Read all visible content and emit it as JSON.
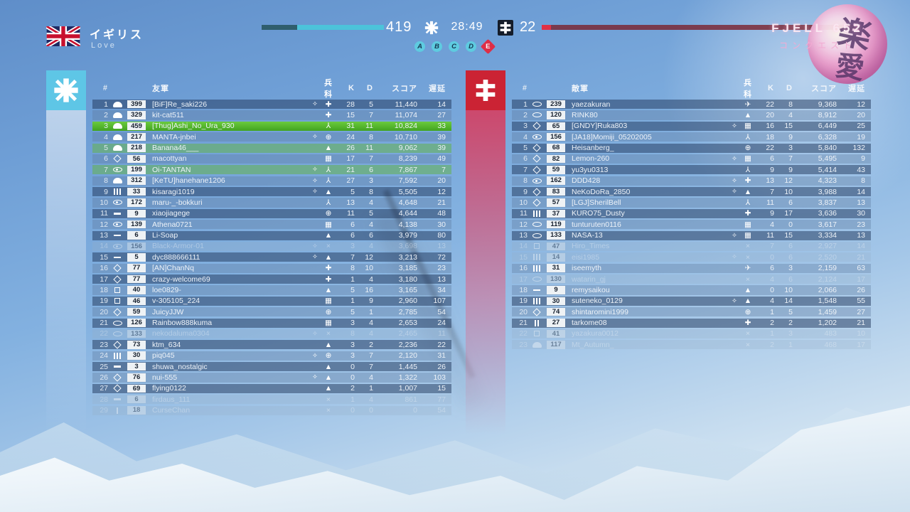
{
  "header": {
    "team_name": "イギリス",
    "server_name": "Love",
    "friendly_tickets": "419",
    "timer": "28:49",
    "enemy_tickets": "22",
    "map_name": "FJELL 652",
    "mode_name": "コンクエスト",
    "watermark_kanji_1": "楽",
    "watermark_kanji_2": "愛",
    "objectives": [
      {
        "label": "A",
        "shape": "circle"
      },
      {
        "label": "B",
        "shape": "circle"
      },
      {
        "label": "C",
        "shape": "circle"
      },
      {
        "label": "D",
        "shape": "circle"
      },
      {
        "label": "E",
        "shape": "diamond"
      }
    ],
    "colors": {
      "friendly_accent": "#5ec6e6",
      "enemy_accent": "#cb2334",
      "self_row": "#55b52e",
      "squad_row": "#66b256"
    }
  },
  "friendly": {
    "columns": {
      "num": "#",
      "name": "友軍",
      "cls": "兵科",
      "k": "K",
      "d": "D",
      "score": "スコア",
      "ping": "遅延"
    },
    "rows": [
      {
        "num": "1",
        "rank": "helmet",
        "level": "399",
        "name": "[BiF]Re_saki226",
        "squad": true,
        "cls": "medic",
        "k": "28",
        "d": "5",
        "score": "11,440",
        "ping": "14",
        "state": "normal"
      },
      {
        "num": "2",
        "rank": "helmet",
        "level": "329",
        "name": "kit-cat511",
        "squad": false,
        "cls": "medic",
        "k": "15",
        "d": "7",
        "score": "11,074",
        "ping": "27",
        "state": "normal"
      },
      {
        "num": "3",
        "rank": "helmet",
        "level": "459",
        "name": "[Thug]Ashi_No_Ura_930",
        "squad": false,
        "cls": "pilot",
        "k": "31",
        "d": "11",
        "score": "10,824",
        "ping": "33",
        "state": "self"
      },
      {
        "num": "4",
        "rank": "helmet",
        "level": "217",
        "name": "MANTA-jnbei",
        "squad": true,
        "cls": "tanker",
        "k": "24",
        "d": "8",
        "score": "10,710",
        "ping": "39",
        "state": "normal"
      },
      {
        "num": "5",
        "rank": "helmet",
        "level": "218",
        "name": "Banana46___",
        "squad": false,
        "cls": "scout",
        "k": "26",
        "d": "11",
        "score": "9,062",
        "ping": "39",
        "state": "squad"
      },
      {
        "num": "6",
        "rank": "diamond",
        "level": "56",
        "name": "macottyan",
        "squad": false,
        "cls": "support",
        "k": "17",
        "d": "7",
        "score": "8,239",
        "ping": "49",
        "state": "normal"
      },
      {
        "num": "7",
        "rank": "eye",
        "level": "199",
        "name": "Oi-TANTAN",
        "squad": true,
        "cls": "pilot",
        "k": "21",
        "d": "6",
        "score": "7,867",
        "ping": "7",
        "state": "squad"
      },
      {
        "num": "8",
        "rank": "helmet",
        "level": "312",
        "name": "[KeTU]hanehane1206",
        "squad": true,
        "cls": "pilot",
        "k": "27",
        "d": "3",
        "score": "7,592",
        "ping": "20",
        "state": "normal"
      },
      {
        "num": "9",
        "rank": "bars3",
        "level": "33",
        "name": "kisaragi1019",
        "squad": true,
        "cls": "scout",
        "k": "5",
        "d": "8",
        "score": "5,505",
        "ping": "12",
        "state": "normal"
      },
      {
        "num": "10",
        "rank": "eye",
        "level": "172",
        "name": "maru-_-bokkuri",
        "squad": false,
        "cls": "pilot",
        "k": "13",
        "d": "4",
        "score": "4,648",
        "ping": "21",
        "state": "normal"
      },
      {
        "num": "11",
        "rank": "dash",
        "level": "9",
        "name": "xiaojiagege",
        "squad": false,
        "cls": "tanker",
        "k": "11",
        "d": "5",
        "score": "4,644",
        "ping": "48",
        "state": "normal"
      },
      {
        "num": "12",
        "rank": "eye",
        "level": "139",
        "name": "Athena0721",
        "squad": false,
        "cls": "support",
        "k": "6",
        "d": "4",
        "score": "4,138",
        "ping": "30",
        "state": "normal"
      },
      {
        "num": "13",
        "rank": "dash",
        "level": "6",
        "name": "Li-Soap",
        "squad": false,
        "cls": "scout",
        "k": "6",
        "d": "6",
        "score": "3,979",
        "ping": "80",
        "state": "normal"
      },
      {
        "num": "14",
        "rank": "eye",
        "level": "156",
        "name": "Black-Armor-01",
        "squad": true,
        "cls": "none",
        "k": "3",
        "d": "4",
        "score": "3,698",
        "ping": "13",
        "state": "inactive"
      },
      {
        "num": "15",
        "rank": "dash",
        "level": "5",
        "name": "dyc888666111",
        "squad": true,
        "cls": "scout",
        "k": "7",
        "d": "12",
        "score": "3,213",
        "ping": "72",
        "state": "normal"
      },
      {
        "num": "16",
        "rank": "diamond",
        "level": "77",
        "name": "[AN]ChanNq",
        "squad": false,
        "cls": "medic",
        "k": "8",
        "d": "10",
        "score": "3,185",
        "ping": "23",
        "state": "normal"
      },
      {
        "num": "17",
        "rank": "diamond",
        "level": "77",
        "name": "crazy-welcome69",
        "squad": false,
        "cls": "medic",
        "k": "1",
        "d": "4",
        "score": "3,180",
        "ping": "13",
        "state": "normal"
      },
      {
        "num": "18",
        "rank": "square",
        "level": "40",
        "name": "loe0829-",
        "squad": false,
        "cls": "scout",
        "k": "5",
        "d": "16",
        "score": "3,165",
        "ping": "34",
        "state": "normal"
      },
      {
        "num": "19",
        "rank": "square",
        "level": "46",
        "name": "v-305105_224",
        "squad": false,
        "cls": "support",
        "k": "1",
        "d": "9",
        "score": "2,960",
        "ping": "107",
        "state": "normal"
      },
      {
        "num": "20",
        "rank": "diamond",
        "level": "59",
        "name": "JuicyJJW",
        "squad": false,
        "cls": "tanker",
        "k": "5",
        "d": "1",
        "score": "2,785",
        "ping": "54",
        "state": "normal"
      },
      {
        "num": "21",
        "rank": "oval",
        "level": "126",
        "name": "Rainbow888kuma",
        "squad": false,
        "cls": "support",
        "k": "3",
        "d": "4",
        "score": "2,653",
        "ping": "24",
        "state": "normal"
      },
      {
        "num": "22",
        "rank": "oval",
        "level": "133",
        "name": "nekodaluma0304",
        "squad": true,
        "cls": "none",
        "k": "8",
        "d": "4",
        "score": "2,465",
        "ping": "11",
        "state": "inactive"
      },
      {
        "num": "23",
        "rank": "diamond",
        "level": "73",
        "name": "ktm_634",
        "squad": false,
        "cls": "scout",
        "k": "3",
        "d": "2",
        "score": "2,236",
        "ping": "22",
        "state": "normal"
      },
      {
        "num": "24",
        "rank": "bars3",
        "level": "30",
        "name": "piq045",
        "squad": true,
        "cls": "tanker",
        "k": "3",
        "d": "7",
        "score": "2,120",
        "ping": "31",
        "state": "normal"
      },
      {
        "num": "25",
        "rank": "dash",
        "level": "3",
        "name": "shuwa_nostalgic",
        "squad": false,
        "cls": "scout",
        "k": "0",
        "d": "7",
        "score": "1,445",
        "ping": "26",
        "state": "normal"
      },
      {
        "num": "26",
        "rank": "diamond",
        "level": "76",
        "name": "nui-555",
        "squad": true,
        "cls": "scout",
        "k": "0",
        "d": "4",
        "score": "1,322",
        "ping": "103",
        "state": "normal"
      },
      {
        "num": "27",
        "rank": "diamond",
        "level": "69",
        "name": "flying0122",
        "squad": false,
        "cls": "scout",
        "k": "2",
        "d": "1",
        "score": "1,007",
        "ping": "15",
        "state": "normal"
      },
      {
        "num": "28",
        "rank": "dash",
        "level": "6",
        "name": "firdaus_111",
        "squad": false,
        "cls": "none",
        "k": "1",
        "d": "4",
        "score": "861",
        "ping": "77",
        "state": "inactive"
      },
      {
        "num": "29",
        "rank": "bar1",
        "level": "18",
        "name": "CurseChan",
        "squad": false,
        "cls": "none",
        "k": "0",
        "d": "0",
        "score": "0",
        "ping": "54",
        "state": "inactive"
      }
    ]
  },
  "enemy": {
    "columns": {
      "num": "#",
      "name": "敵軍",
      "cls": "兵科",
      "k": "K",
      "d": "D",
      "score": "スコア",
      "ping": "遅延"
    },
    "rows": [
      {
        "num": "1",
        "rank": "oval",
        "level": "239",
        "name": "yaezakuran",
        "squad": false,
        "cls": "plane",
        "k": "22",
        "d": "8",
        "score": "9,368",
        "ping": "12",
        "state": "normal"
      },
      {
        "num": "2",
        "rank": "oval",
        "level": "120",
        "name": "RINK80",
        "squad": false,
        "cls": "scout",
        "k": "20",
        "d": "4",
        "score": "8,912",
        "ping": "20",
        "state": "normal"
      },
      {
        "num": "3",
        "rank": "diamond",
        "level": "65",
        "name": "[GNDY]Ruka803",
        "squad": true,
        "cls": "support",
        "k": "16",
        "d": "15",
        "score": "6,449",
        "ping": "25",
        "state": "normal"
      },
      {
        "num": "4",
        "rank": "eye",
        "level": "156",
        "name": "[JA18]Momiji_05202005",
        "squad": false,
        "cls": "pilot",
        "k": "18",
        "d": "9",
        "score": "6,328",
        "ping": "19",
        "state": "normal"
      },
      {
        "num": "5",
        "rank": "diamond",
        "level": "68",
        "name": "Heisanberg_",
        "squad": false,
        "cls": "tanker",
        "k": "22",
        "d": "3",
        "score": "5,840",
        "ping": "132",
        "state": "normal"
      },
      {
        "num": "6",
        "rank": "diamond",
        "level": "82",
        "name": "Lemon-260",
        "squad": true,
        "cls": "support",
        "k": "6",
        "d": "7",
        "score": "5,495",
        "ping": "9",
        "state": "normal"
      },
      {
        "num": "7",
        "rank": "diamond",
        "level": "59",
        "name": "yu3yu0313",
        "squad": false,
        "cls": "pilot",
        "k": "9",
        "d": "9",
        "score": "5,414",
        "ping": "43",
        "state": "normal"
      },
      {
        "num": "8",
        "rank": "eye",
        "level": "162",
        "name": "DDD428",
        "squad": true,
        "cls": "medic",
        "k": "13",
        "d": "12",
        "score": "4,323",
        "ping": "8",
        "state": "normal"
      },
      {
        "num": "9",
        "rank": "diamond",
        "level": "83",
        "name": "NeKoDoRa_2850",
        "squad": true,
        "cls": "scout",
        "k": "7",
        "d": "10",
        "score": "3,988",
        "ping": "14",
        "state": "normal"
      },
      {
        "num": "10",
        "rank": "diamond",
        "level": "57",
        "name": "[LGJ]SherilBell",
        "squad": false,
        "cls": "pilot",
        "k": "11",
        "d": "6",
        "score": "3,837",
        "ping": "13",
        "state": "normal"
      },
      {
        "num": "11",
        "rank": "bars3",
        "level": "37",
        "name": "KURO75_Dusty",
        "squad": false,
        "cls": "medic",
        "k": "9",
        "d": "17",
        "score": "3,636",
        "ping": "30",
        "state": "normal"
      },
      {
        "num": "12",
        "rank": "oval",
        "level": "119",
        "name": "tunturuten0116",
        "squad": false,
        "cls": "support",
        "k": "4",
        "d": "0",
        "score": "3,617",
        "ping": "23",
        "state": "normal"
      },
      {
        "num": "13",
        "rank": "oval",
        "level": "133",
        "name": "NASA-13",
        "squad": true,
        "cls": "support",
        "k": "11",
        "d": "15",
        "score": "3,334",
        "ping": "13",
        "state": "normal"
      },
      {
        "num": "14",
        "rank": "square",
        "level": "47",
        "name": "Hiro_Times",
        "squad": false,
        "cls": "none",
        "k": "7",
        "d": "6",
        "score": "2,927",
        "ping": "14",
        "state": "inactive"
      },
      {
        "num": "15",
        "rank": "bars3",
        "level": "14",
        "name": "eisi1985",
        "squad": true,
        "cls": "none",
        "k": "0",
        "d": "6",
        "score": "2,520",
        "ping": "21",
        "state": "inactive"
      },
      {
        "num": "16",
        "rank": "bars3",
        "level": "31",
        "name": "iseemyth",
        "squad": false,
        "cls": "plane",
        "k": "6",
        "d": "3",
        "score": "2,159",
        "ping": "63",
        "state": "normal"
      },
      {
        "num": "17",
        "rank": "oval",
        "level": "130",
        "name": "watarin_gj",
        "squad": false,
        "cls": "none",
        "k": "4",
        "d": "6",
        "score": "2,124",
        "ping": "17",
        "state": "inactive"
      },
      {
        "num": "18",
        "rank": "dash",
        "level": "9",
        "name": "remysaikou",
        "squad": false,
        "cls": "scout",
        "k": "0",
        "d": "10",
        "score": "2,066",
        "ping": "26",
        "state": "normal"
      },
      {
        "num": "19",
        "rank": "bars3",
        "level": "30",
        "name": "suteneko_0129",
        "squad": true,
        "cls": "scout",
        "k": "4",
        "d": "14",
        "score": "1,548",
        "ping": "55",
        "state": "normal"
      },
      {
        "num": "20",
        "rank": "diamond",
        "level": "74",
        "name": "shintaromini1999",
        "squad": false,
        "cls": "tanker",
        "k": "1",
        "d": "5",
        "score": "1,459",
        "ping": "27",
        "state": "normal"
      },
      {
        "num": "21",
        "rank": "bars2",
        "level": "27",
        "name": "tarkome08",
        "squad": false,
        "cls": "medic",
        "k": "2",
        "d": "2",
        "score": "1,202",
        "ping": "21",
        "state": "normal"
      },
      {
        "num": "22",
        "rank": "square",
        "level": "41",
        "name": "yazakura0012",
        "squad": false,
        "cls": "none",
        "k": "1",
        "d": "3",
        "score": "483",
        "ping": "10",
        "state": "inactive"
      },
      {
        "num": "23",
        "rank": "helmet",
        "level": "117",
        "name": "Mt_Autumn_",
        "squad": false,
        "cls": "none",
        "k": "2",
        "d": "1",
        "score": "468",
        "ping": "17",
        "state": "inactive"
      }
    ]
  }
}
